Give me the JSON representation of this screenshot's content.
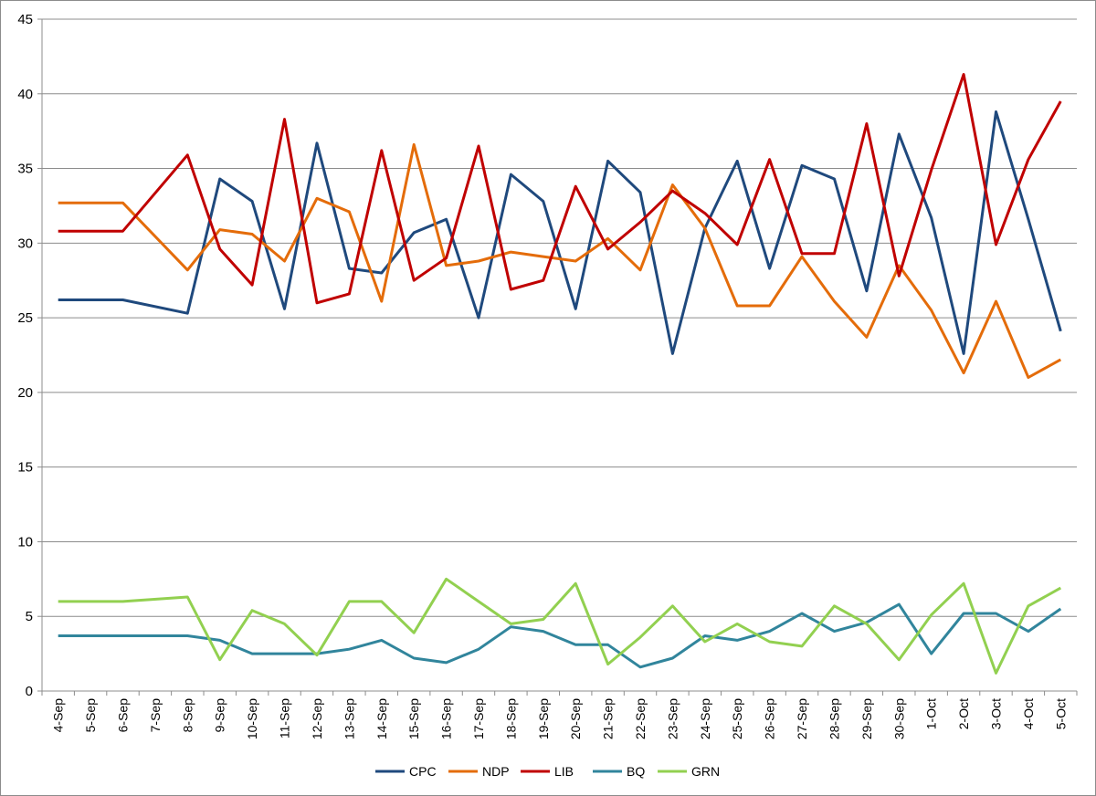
{
  "chart_data": {
    "type": "line",
    "title": "",
    "xlabel": "",
    "ylabel": "",
    "ylim": [
      0,
      45
    ],
    "yticks": [
      0,
      5,
      10,
      15,
      20,
      25,
      30,
      35,
      40,
      45
    ],
    "grid": "horizontal",
    "legend": "bottom",
    "categories": [
      "4-Sep",
      "5-Sep",
      "6-Sep",
      "7-Sep",
      "8-Sep",
      "9-Sep",
      "10-Sep",
      "11-Sep",
      "12-Sep",
      "13-Sep",
      "14-Sep",
      "15-Sep",
      "16-Sep",
      "17-Sep",
      "18-Sep",
      "19-Sep",
      "20-Sep",
      "21-Sep",
      "22-Sep",
      "23-Sep",
      "24-Sep",
      "25-Sep",
      "26-Sep",
      "27-Sep",
      "28-Sep",
      "29-Sep",
      "30-Sep",
      "1-Oct",
      "2-Oct",
      "3-Oct",
      "4-Oct",
      "5-Oct"
    ],
    "series": [
      {
        "name": "CPC",
        "color": "#1f497d",
        "values": [
          26.2,
          26.2,
          26.2,
          null,
          25.3,
          34.3,
          32.8,
          25.6,
          36.7,
          28.3,
          28.0,
          30.7,
          31.6,
          25.0,
          34.6,
          32.8,
          25.6,
          35.5,
          33.4,
          22.6,
          31.0,
          35.5,
          28.3,
          35.2,
          34.3,
          26.8,
          37.3,
          31.7,
          22.6,
          38.8,
          31.6,
          24.1
        ]
      },
      {
        "name": "NDP",
        "color": "#e46c0a",
        "values": [
          32.7,
          32.7,
          32.7,
          null,
          28.2,
          30.9,
          30.6,
          28.8,
          33.0,
          32.1,
          26.1,
          36.6,
          28.5,
          28.8,
          29.4,
          29.1,
          28.8,
          30.3,
          28.2,
          33.9,
          31.0,
          25.8,
          25.8,
          29.1,
          26.1,
          23.7,
          28.5,
          25.5,
          21.3,
          26.1,
          21.0,
          22.2
        ]
      },
      {
        "name": "LIB",
        "color": "#c00000",
        "values": [
          30.8,
          30.8,
          30.8,
          null,
          35.9,
          29.6,
          27.2,
          38.3,
          26.0,
          26.6,
          36.2,
          27.5,
          29.0,
          36.5,
          26.9,
          27.5,
          33.8,
          29.6,
          31.4,
          33.5,
          32.0,
          29.9,
          35.6,
          29.3,
          29.3,
          38.0,
          27.8,
          34.9,
          41.3,
          29.9,
          35.6,
          39.5
        ]
      },
      {
        "name": "BQ",
        "color": "#31859c",
        "values": [
          3.7,
          3.7,
          3.7,
          null,
          3.7,
          3.4,
          2.5,
          2.5,
          2.5,
          2.8,
          3.4,
          2.2,
          1.9,
          2.8,
          4.3,
          4.0,
          3.1,
          3.1,
          1.6,
          2.2,
          3.7,
          3.4,
          4.0,
          5.2,
          4.0,
          4.6,
          5.8,
          2.5,
          5.2,
          5.2,
          4.0,
          5.5
        ]
      },
      {
        "name": "GRN",
        "color": "#92d050",
        "values": [
          6.0,
          6.0,
          6.0,
          null,
          6.3,
          2.1,
          5.4,
          4.5,
          2.4,
          6.0,
          6.0,
          3.9,
          7.5,
          6.0,
          4.5,
          4.8,
          7.2,
          1.8,
          3.6,
          5.7,
          3.3,
          4.5,
          3.3,
          3.0,
          5.7,
          4.5,
          2.1,
          5.1,
          7.2,
          1.2,
          5.7,
          6.9
        ]
      }
    ]
  }
}
